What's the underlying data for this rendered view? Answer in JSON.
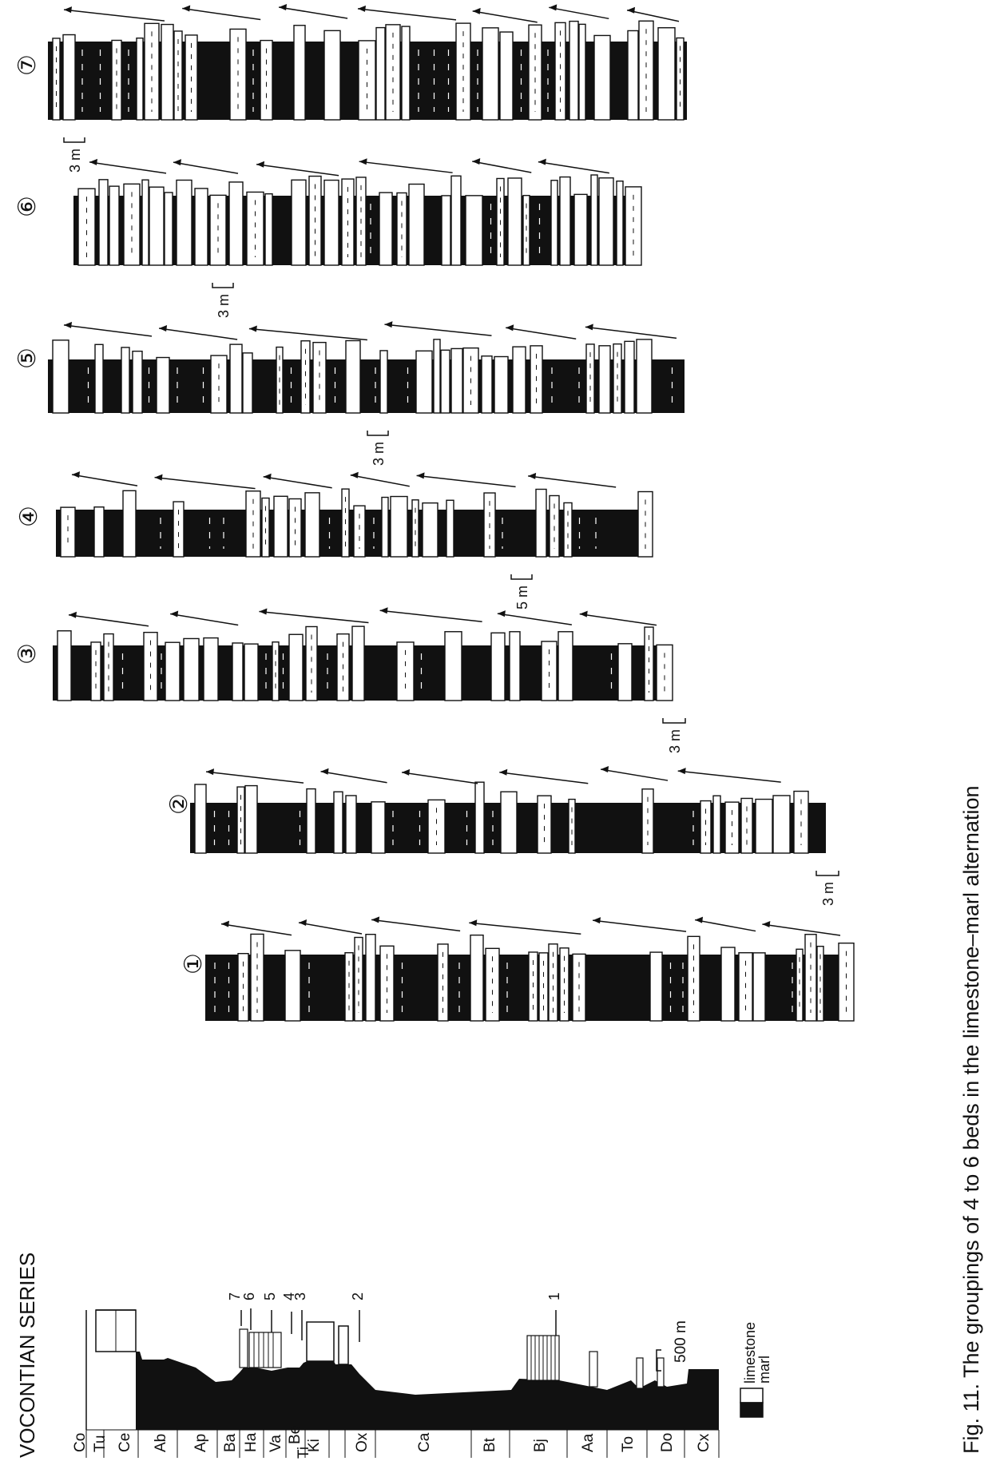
{
  "figure": {
    "caption": "Fig. 11. The groupings of 4 to 6 beds in the limestone–marl alternation",
    "legend_title": "VOCONTIAN SERIES",
    "stage_labels": [
      "Co",
      "Tu",
      "Ce",
      "Ab",
      "Ap",
      "Ba",
      "Ha",
      "Va",
      "Be",
      "Ti",
      "Ki",
      "Ox",
      "Ca",
      "Bt",
      "Bj",
      "Aa",
      "To",
      "Do",
      "Cx"
    ],
    "section_markers": [
      "7",
      "6",
      "5",
      "4",
      "3",
      "2",
      "1"
    ],
    "overview_scale": "500 m",
    "legend": {
      "limestone": "limestone",
      "marl": "marl"
    },
    "colors": {
      "marl": "#111111",
      "limestone": "#ffffff",
      "ink": "#111111"
    }
  },
  "sections": [
    {
      "id": "1",
      "label": "①",
      "scale": "3 m"
    },
    {
      "id": "2",
      "label": "②",
      "scale": "3 m"
    },
    {
      "id": "3",
      "label": "③",
      "scale": "3 m"
    },
    {
      "id": "4",
      "label": "④",
      "scale": "5 m"
    },
    {
      "id": "5",
      "label": "⑤",
      "scale": "3 m"
    },
    {
      "id": "6",
      "label": "⑥",
      "scale": "3 m"
    },
    {
      "id": "7",
      "label": "⑦",
      "scale": "3 m"
    }
  ]
}
